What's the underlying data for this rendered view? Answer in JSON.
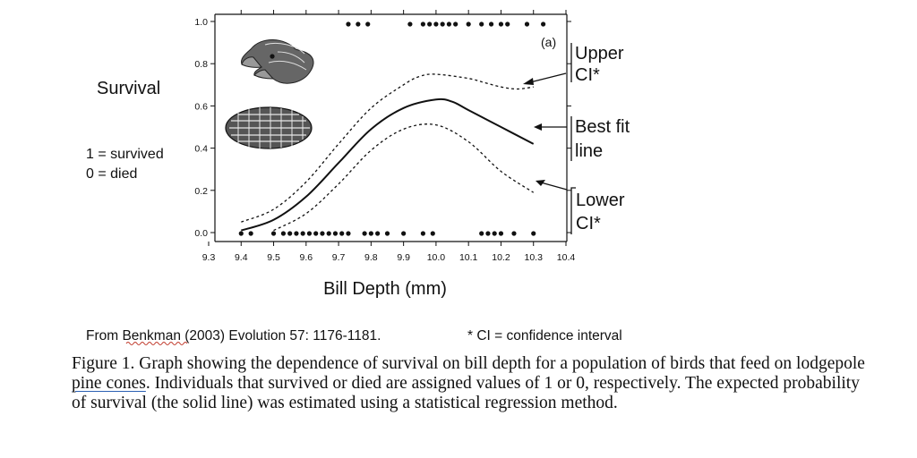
{
  "chart_data": {
    "type": "line",
    "panel_label": "(a)",
    "ylabel": "Survival",
    "ylabel_legend": [
      "1 = survived",
      "0 = died"
    ],
    "xlabel": "Bill Depth (mm)",
    "xlim": [
      9.3,
      10.4
    ],
    "ylim": [
      0.0,
      1.0
    ],
    "x_ticks": [
      "9.3",
      "9.4",
      "9.5",
      "9.6",
      "9.7",
      "9.8",
      "9.9",
      "10.0",
      "10.1",
      "10.2",
      "10.3",
      "10.4"
    ],
    "y_ticks": [
      "0.0",
      "0.2",
      "0.4",
      "0.6",
      "0.8",
      "1.0"
    ],
    "series": [
      {
        "key": "best_fit",
        "style": "solid",
        "x": [
          9.4,
          9.5,
          9.6,
          9.7,
          9.8,
          9.9,
          10.0,
          10.05,
          10.1,
          10.2,
          10.3
        ],
        "y": [
          0.01,
          0.06,
          0.17,
          0.33,
          0.49,
          0.59,
          0.63,
          0.62,
          0.58,
          0.5,
          0.42
        ]
      },
      {
        "key": "upper_ci",
        "style": "dashed",
        "x": [
          9.4,
          9.5,
          9.6,
          9.7,
          9.8,
          9.9,
          9.95,
          10.0,
          10.1,
          10.15,
          10.2,
          10.25,
          10.3
        ],
        "y": [
          0.05,
          0.11,
          0.24,
          0.42,
          0.59,
          0.7,
          0.74,
          0.75,
          0.73,
          0.71,
          0.69,
          0.68,
          0.69
        ]
      },
      {
        "key": "lower_ci",
        "style": "dashed",
        "x": [
          9.5,
          9.6,
          9.7,
          9.8,
          9.9,
          10.0,
          10.1,
          10.2,
          10.3
        ],
        "y": [
          0.01,
          0.09,
          0.23,
          0.39,
          0.49,
          0.51,
          0.43,
          0.29,
          0.19
        ]
      }
    ],
    "survived_x": [
      9.73,
      9.76,
      9.79,
      9.92,
      9.96,
      9.98,
      10.0,
      10.02,
      10.04,
      10.06,
      10.1,
      10.14,
      10.17,
      10.2,
      10.22,
      10.28,
      10.33
    ],
    "died_x": [
      9.4,
      9.43,
      9.5,
      9.53,
      9.55,
      9.57,
      9.59,
      9.61,
      9.63,
      9.65,
      9.67,
      9.69,
      9.71,
      9.73,
      9.78,
      9.8,
      9.82,
      9.85,
      9.9,
      9.96,
      9.99,
      10.14,
      10.16,
      10.18,
      10.2,
      10.24,
      10.3
    ],
    "annotations": {
      "upper_ci": [
        "Upper",
        "CI*"
      ],
      "best_fit": [
        "Best fit",
        "line"
      ],
      "lower_ci": [
        "Lower",
        "CI*"
      ]
    }
  },
  "figure_images": {
    "bird_head": "crossbill-head-drawing",
    "pine_cone": "pine-cone-drawing"
  },
  "source_note": "From Benkman (2003) Evolution 57: 1176-1181.",
  "source_author": "Benkman",
  "footnote": "* CI = confidence interval",
  "caption": {
    "before": "Figure 1. Graph showing the dependence of survival on bill depth for a population of birds that feed on lodgepole ",
    "underlined": "pine cones",
    "after": ". Individuals that survived or died are assigned values of 1 or 0, respectively. The expected probability of survival (the solid line) was estimated using a statistical regression method."
  }
}
